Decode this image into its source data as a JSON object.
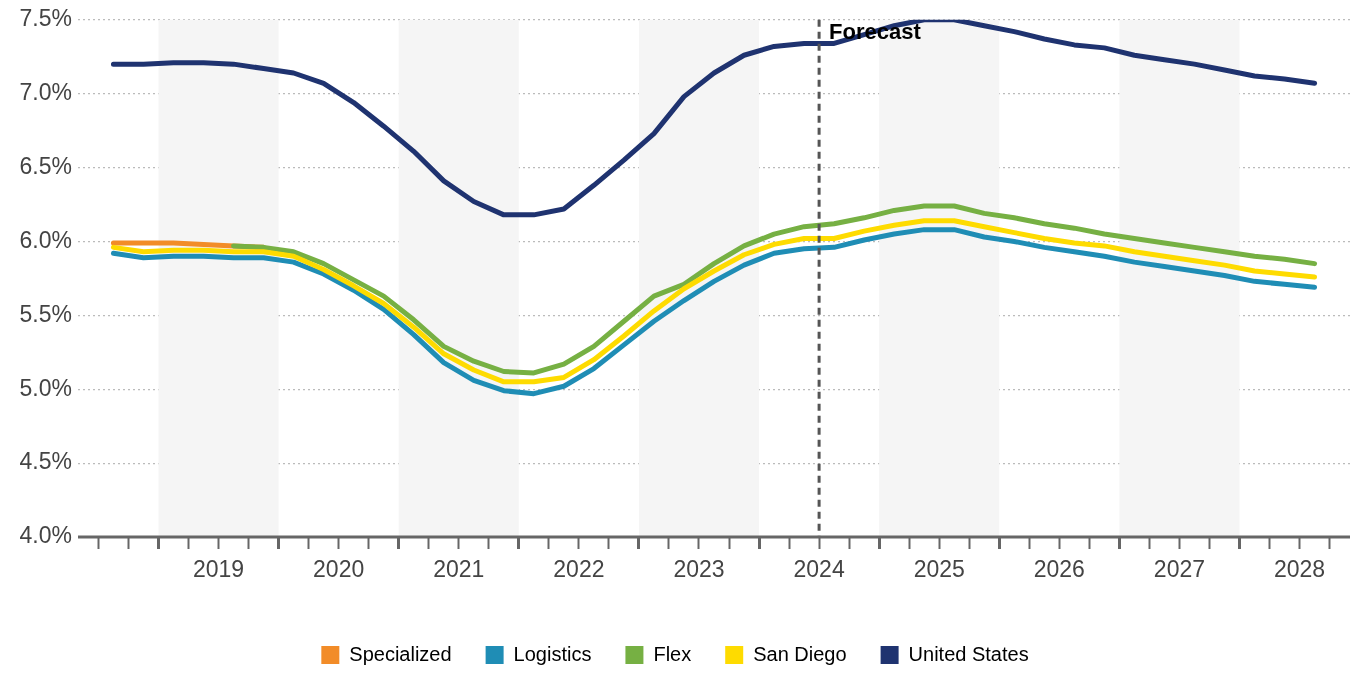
{
  "chart_data": {
    "type": "line",
    "x": [
      2018.625,
      2018.875,
      2019.125,
      2019.375,
      2019.625,
      2019.875,
      2020.125,
      2020.375,
      2020.625,
      2020.875,
      2021.125,
      2021.375,
      2021.625,
      2021.875,
      2022.125,
      2022.375,
      2022.625,
      2022.875,
      2023.125,
      2023.375,
      2023.625,
      2023.875,
      2024.125,
      2024.375,
      2024.625,
      2024.875,
      2025.125,
      2025.375,
      2025.625,
      2025.875,
      2026.125,
      2026.375,
      2026.625,
      2026.875,
      2027.125,
      2027.375,
      2027.625,
      2027.875,
      2028.125,
      2028.375,
      2028.625
    ],
    "series": [
      {
        "name": "Specialized",
        "color": "#f28c28",
        "values": [
          5.99,
          5.99,
          5.99,
          5.98,
          5.97,
          5.96,
          null,
          null,
          null,
          null,
          null,
          null,
          null,
          null,
          null,
          null,
          null,
          null,
          null,
          null,
          null,
          null,
          null,
          null,
          null,
          null,
          null,
          null,
          null,
          null,
          null,
          null,
          null,
          null,
          null,
          null,
          null,
          null,
          null,
          null,
          null
        ]
      },
      {
        "name": "Logistics",
        "color": "#1f8db5",
        "values": [
          5.92,
          5.89,
          5.9,
          5.9,
          5.89,
          5.89,
          5.86,
          5.78,
          5.67,
          5.54,
          5.37,
          5.18,
          5.06,
          4.99,
          4.97,
          5.02,
          5.14,
          5.3,
          5.46,
          5.6,
          5.73,
          5.84,
          5.92,
          5.95,
          5.96,
          6.01,
          6.05,
          6.08,
          6.08,
          6.03,
          6.0,
          5.96,
          5.93,
          5.9,
          5.86,
          5.83,
          5.8,
          5.77,
          5.73,
          5.71,
          5.69
        ]
      },
      {
        "name": "Flex",
        "color": "#76b043",
        "values": [
          null,
          null,
          null,
          null,
          5.97,
          5.96,
          5.93,
          5.85,
          5.74,
          5.63,
          5.47,
          5.29,
          5.19,
          5.12,
          5.11,
          5.17,
          5.29,
          5.46,
          5.63,
          5.71,
          5.85,
          5.97,
          6.05,
          6.1,
          6.12,
          6.16,
          6.21,
          6.24,
          6.24,
          6.19,
          6.16,
          6.12,
          6.09,
          6.05,
          6.02,
          5.99,
          5.96,
          5.93,
          5.9,
          5.88,
          5.85
        ]
      },
      {
        "name": "San Diego",
        "color": "#fedb00",
        "values": [
          5.96,
          5.93,
          5.94,
          5.94,
          5.93,
          5.93,
          5.9,
          5.81,
          5.7,
          5.58,
          5.42,
          5.24,
          5.13,
          5.05,
          5.05,
          5.08,
          5.2,
          5.36,
          5.53,
          5.68,
          5.8,
          5.91,
          5.98,
          6.02,
          6.02,
          6.07,
          6.11,
          6.14,
          6.14,
          6.1,
          6.06,
          6.02,
          5.99,
          5.97,
          5.93,
          5.9,
          5.87,
          5.84,
          5.8,
          5.78,
          5.76
        ]
      },
      {
        "name": "United States",
        "color": "#1f3370",
        "values": [
          7.2,
          7.2,
          7.21,
          7.21,
          7.2,
          7.17,
          7.14,
          7.07,
          6.94,
          6.78,
          6.61,
          6.41,
          6.27,
          6.18,
          6.18,
          6.22,
          6.38,
          6.55,
          6.73,
          6.98,
          7.14,
          7.26,
          7.32,
          7.34,
          7.34,
          7.4,
          7.46,
          7.5,
          7.5,
          7.46,
          7.42,
          7.37,
          7.33,
          7.31,
          7.26,
          7.23,
          7.2,
          7.16,
          7.12,
          7.1,
          7.07
        ]
      }
    ],
    "xlim": [
      2018.33,
      2028.92
    ],
    "xticks": [
      {
        "value": 2018.5,
        "label": null
      },
      {
        "value": 2018.75,
        "label": null
      },
      {
        "value": 2019,
        "label": null
      },
      {
        "value": 2019.25,
        "label": null
      },
      {
        "value": 2019.5,
        "label": "2019"
      },
      {
        "value": 2019.75,
        "label": null
      },
      {
        "value": 2020,
        "label": null
      },
      {
        "value": 2020.25,
        "label": null
      },
      {
        "value": 2020.5,
        "label": "2020"
      },
      {
        "value": 2020.75,
        "label": null
      },
      {
        "value": 2021,
        "label": null
      },
      {
        "value": 2021.25,
        "label": null
      },
      {
        "value": 2021.5,
        "label": "2021"
      },
      {
        "value": 2021.75,
        "label": null
      },
      {
        "value": 2022,
        "label": null
      },
      {
        "value": 2022.25,
        "label": null
      },
      {
        "value": 2022.5,
        "label": "2022"
      },
      {
        "value": 2022.75,
        "label": null
      },
      {
        "value": 2023,
        "label": null
      },
      {
        "value": 2023.25,
        "label": null
      },
      {
        "value": 2023.5,
        "label": "2023"
      },
      {
        "value": 2023.75,
        "label": null
      },
      {
        "value": 2024,
        "label": null
      },
      {
        "value": 2024.25,
        "label": null
      },
      {
        "value": 2024.5,
        "label": "2024"
      },
      {
        "value": 2024.75,
        "label": null
      },
      {
        "value": 2025,
        "label": null
      },
      {
        "value": 2025.25,
        "label": null
      },
      {
        "value": 2025.5,
        "label": "2025"
      },
      {
        "value": 2025.75,
        "label": null
      },
      {
        "value": 2026,
        "label": null
      },
      {
        "value": 2026.25,
        "label": null
      },
      {
        "value": 2026.5,
        "label": "2026"
      },
      {
        "value": 2026.75,
        "label": null
      },
      {
        "value": 2027,
        "label": null
      },
      {
        "value": 2027.25,
        "label": null
      },
      {
        "value": 2027.5,
        "label": "2027"
      },
      {
        "value": 2027.75,
        "label": null
      },
      {
        "value": 2028,
        "label": null
      },
      {
        "value": 2028.25,
        "label": null
      },
      {
        "value": 2028.5,
        "label": "2028"
      },
      {
        "value": 2028.75,
        "label": null
      }
    ],
    "ylim": [
      4,
      7.5
    ],
    "yticks": [
      {
        "value": 4,
        "label": "4.0%"
      },
      {
        "value": 4.5,
        "label": "4.5%"
      },
      {
        "value": 5,
        "label": "5.0%"
      },
      {
        "value": 5.5,
        "label": "5.5%"
      },
      {
        "value": 6,
        "label": "6.0%"
      },
      {
        "value": 6.5,
        "label": "6.5%"
      },
      {
        "value": 7,
        "label": "7.0%"
      },
      {
        "value": 7.5,
        "label": "7.5%"
      }
    ],
    "grid": "y",
    "legend": "bottom",
    "marker": "none",
    "line_style": "solid",
    "ref_lines": [
      {
        "axis": "x",
        "value": 2024.5,
        "label": "Forecast",
        "color": "#555555",
        "line_style": "dashed"
      }
    ],
    "bands": [
      {
        "axis": "x",
        "from": 2019,
        "to": 2020,
        "color": "#f5f5f5"
      },
      {
        "axis": "x",
        "from": 2021,
        "to": 2022,
        "color": "#f5f5f5"
      },
      {
        "axis": "x",
        "from": 2023,
        "to": 2024,
        "color": "#f5f5f5"
      },
      {
        "axis": "x",
        "from": 2025,
        "to": 2026,
        "color": "#f5f5f5"
      },
      {
        "axis": "x",
        "from": 2027,
        "to": 2028,
        "color": "#f5f5f5"
      }
    ]
  }
}
